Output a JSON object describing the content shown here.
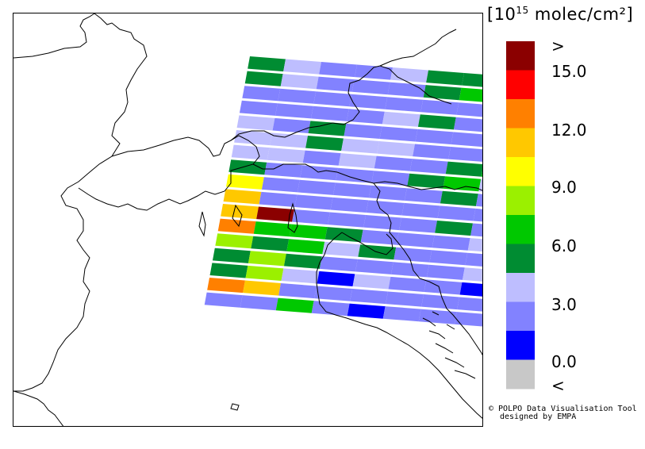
{
  "legend": {
    "unit_prefix": "[10",
    "unit_exponent": "15",
    "unit_suffix": " molec/cm²]",
    "ticks": [
      ">",
      "15.0",
      "12.0",
      "9.0",
      "6.0",
      "3.0",
      "0.0",
      "<"
    ],
    "bins": [
      {
        "label": "above range",
        "color": "#8b0000"
      },
      {
        "label": "13.5-15.0",
        "color": "#ff0000"
      },
      {
        "label": "12.0-13.5",
        "color": "#ff8000"
      },
      {
        "label": "10.5-12.0",
        "color": "#ffc800"
      },
      {
        "label": "9.0-10.5",
        "color": "#ffff00"
      },
      {
        "label": "7.5-9.0",
        "color": "#9bf000"
      },
      {
        "label": "6.0-7.5",
        "color": "#00c800"
      },
      {
        "label": "4.5-6.0",
        "color": "#008c32"
      },
      {
        "label": "3.0-4.5",
        "color": "#bebeff"
      },
      {
        "label": "1.5-3.0",
        "color": "#8282ff"
      },
      {
        "label": "0.0-1.5",
        "color": "#0000ff"
      },
      {
        "label": "below range",
        "color": "#c8c8c8"
      }
    ]
  },
  "credit": {
    "line1": "© POLPO Data Visualisation Tool",
    "line2": "designed by EMPA"
  },
  "swaths": {
    "colors": {
      "V": "#bebeff",
      "B": "#8282ff",
      "D": "#0000ff",
      "G": "#008c32",
      "L": "#00c800",
      "C": "#9bf000",
      "Y": "#ffff00",
      "A": "#ffc800",
      "O": "#ff8000",
      "R": "#ff0000",
      "M": "#8b0000"
    },
    "rows": [
      "GVBBVGGL",
      "GVBBBGLG",
      "BBBBBBBG",
      "BBBBVGBB",
      "VBGBBBBYV",
      "VVGVVBBAV",
      "VVBVBBGLV",
      "GBBBBGLV",
      "YBBBBBGB",
      "ABBBBBBBB",
      "AMBBBBGBB",
      "OLLGBBBVC",
      "CGLVGBBBB",
      "GCGBBBBVV",
      "GCVDVBBDV",
      "OABBBBBBB",
      "BBLBDBBBV"
    ]
  }
}
